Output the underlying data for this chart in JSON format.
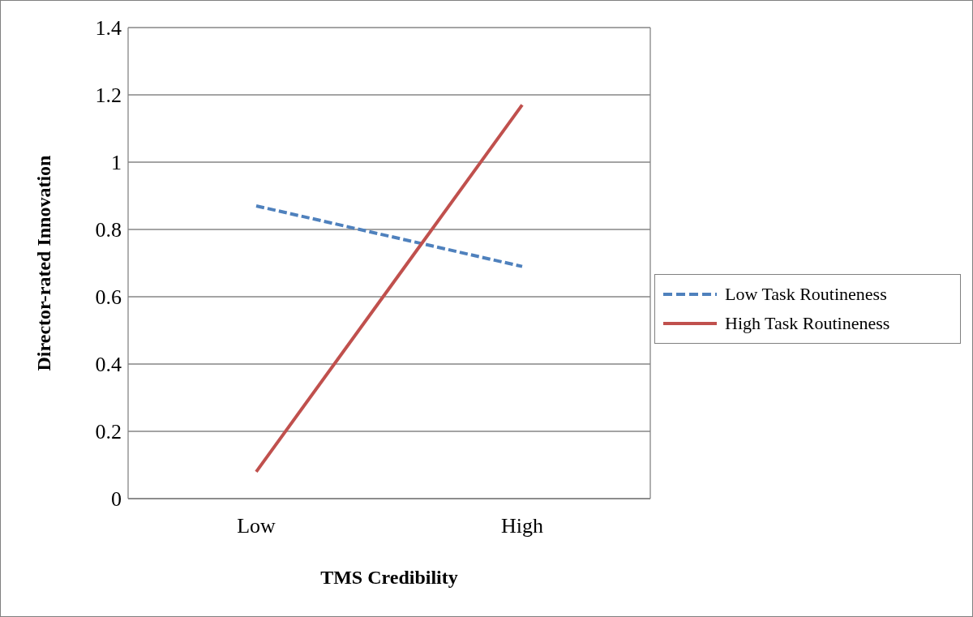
{
  "chart_data": {
    "type": "line",
    "xlabel": "TMS Credibility",
    "ylabel": "Director-rated Innovation",
    "categories": [
      "Low",
      "High"
    ],
    "series": [
      {
        "name": "Low Task Routineness",
        "color": "#4f81bd",
        "values": [
          0.87,
          0.69
        ],
        "line_style": "dashed"
      },
      {
        "name": "High Task Routineness",
        "color": "#c0504d",
        "values": [
          0.08,
          1.17
        ],
        "line_style": "solid"
      }
    ],
    "ylim": [
      0,
      1.4
    ],
    "yticks": [
      0,
      {
        "value": 0.2,
        "label": "0.2"
      },
      {
        "value": 0.4,
        "label": "0.4"
      },
      {
        "value": 0.6,
        "label": "0.6"
      },
      {
        "value": 0.8,
        "label": "0.8"
      },
      1,
      {
        "value": 1.2,
        "label": "1.2"
      },
      {
        "value": 1.4,
        "label": "1.4"
      }
    ],
    "grid": "y",
    "legend": "right",
    "marker": "none"
  }
}
